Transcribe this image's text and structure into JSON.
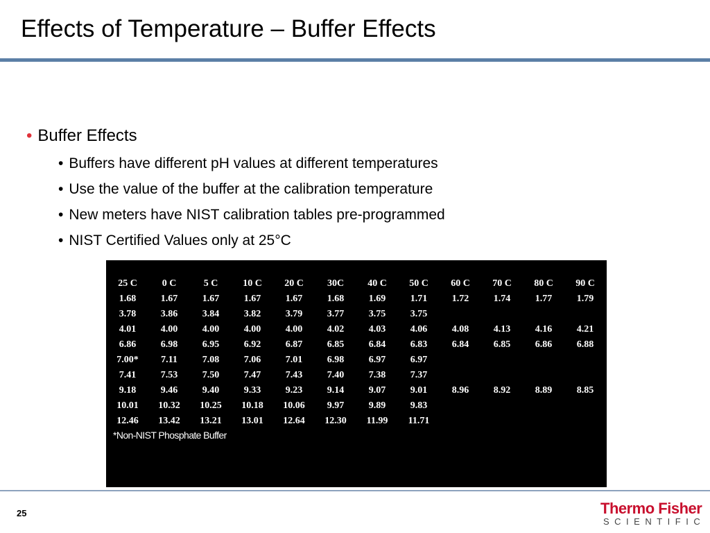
{
  "header": {
    "title": "Effects of Temperature – Buffer Effects"
  },
  "bullets": {
    "main": "Buffer Effects",
    "sub": [
      "Buffers have different pH values at different temperatures",
      "Use the value of the buffer at the calibration temperature",
      "New meters have NIST calibration tables pre-programmed",
      "NIST Certified Values only at 25°C"
    ]
  },
  "table": {
    "header": [
      "25 C",
      "0 C",
      "5 C",
      "10 C",
      "20 C",
      "30C",
      "40 C",
      "50 C",
      "60 C",
      "70 C",
      "80 C",
      "90 C"
    ],
    "rows": [
      [
        "1.68",
        "1.67",
        "1.67",
        "1.67",
        "1.67",
        "1.68",
        "1.69",
        "1.71",
        "1.72",
        "1.74",
        "1.77",
        "1.79"
      ],
      [
        "3.78",
        "3.86",
        "3.84",
        "3.82",
        "3.79",
        "3.77",
        "3.75",
        "3.75",
        null,
        null,
        null,
        null
      ],
      [
        "4.01",
        "4.00",
        "4.00",
        "4.00",
        "4.00",
        "4.02",
        "4.03",
        "4.06",
        "4.08",
        "4.13",
        "4.16",
        "4.21"
      ],
      [
        "6.86",
        "6.98",
        "6.95",
        "6.92",
        "6.87",
        "6.85",
        "6.84",
        "6.83",
        "6.84",
        "6.85",
        "6.86",
        "6.88"
      ],
      [
        "7.00*",
        "7.11",
        "7.08",
        "7.06",
        "7.01",
        "6.98",
        "6.97",
        "6.97",
        null,
        null,
        null,
        null
      ],
      [
        "7.41",
        "7.53",
        "7.50",
        "7.47",
        "7.43",
        "7.40",
        "7.38",
        "7.37",
        null,
        null,
        null,
        null
      ],
      [
        "9.18",
        "9.46",
        "9.40",
        "9.33",
        "9.23",
        "9.14",
        "9.07",
        "9.01",
        "8.96",
        "8.92",
        "8.89",
        "8.85"
      ],
      [
        "10.01",
        "10.32",
        "10.25",
        "10.18",
        "10.06",
        "9.97",
        "9.89",
        "9.83",
        null,
        null,
        null,
        null
      ],
      [
        "12.46",
        "13.42",
        "13.21",
        "13.01",
        "12.64",
        "12.30",
        "11.99",
        "11.71",
        null,
        null,
        null,
        null
      ]
    ],
    "footnote": "*Non-NIST Phosphate Buffer"
  },
  "footer": {
    "page": "25",
    "logo": {
      "name": "Thermo Fisher",
      "tagline": "SCIENTIFIC"
    }
  }
}
